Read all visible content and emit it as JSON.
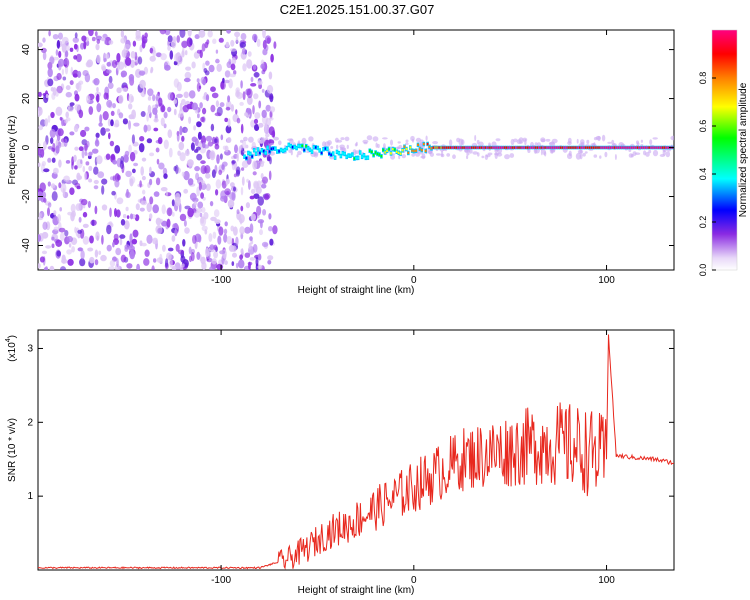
{
  "title": "C2E1.2025.151.00.37.G07",
  "chart_data": [
    {
      "type": "heatmap",
      "xlabel": "Height of straight line (km)",
      "ylabel": "Frequency (Hz)",
      "xlim": [
        -195,
        135
      ],
      "ylim": [
        -50,
        48
      ],
      "xticks": [
        -100,
        0,
        100
      ],
      "yticks": [
        -40,
        -20,
        0,
        20,
        40
      ],
      "colorbar": {
        "label": "Normalized spectral amplitude",
        "range": [
          0,
          1
        ],
        "ticks": [
          "0.0",
          "0.2",
          "0.4",
          "0.6",
          "0.8"
        ],
        "colors": [
          "#ffffff",
          "#e8d8f8",
          "#8a2be2",
          "#0000ff",
          "#00ffff",
          "#00ff00",
          "#ffff00",
          "#ff8000",
          "#ff0000",
          "#ff0080"
        ]
      },
      "noise_region_x": [
        -195,
        -72
      ],
      "signal_line": [
        {
          "x": -88,
          "y": -3,
          "amp": 0.35
        },
        {
          "x": -75,
          "y": -1,
          "amp": 0.4
        },
        {
          "x": -60,
          "y": 0,
          "amp": 0.45
        },
        {
          "x": -45,
          "y": -2,
          "amp": 0.4
        },
        {
          "x": -35,
          "y": -4,
          "amp": 0.45
        },
        {
          "x": -25,
          "y": -3,
          "amp": 0.5
        },
        {
          "x": -15,
          "y": -2,
          "amp": 0.6
        },
        {
          "x": -5,
          "y": -1,
          "amp": 0.7
        },
        {
          "x": 5,
          "y": 0,
          "amp": 0.8
        },
        {
          "x": 20,
          "y": 0,
          "amp": 0.95
        },
        {
          "x": 40,
          "y": 0,
          "amp": 0.95
        },
        {
          "x": 60,
          "y": 0,
          "amp": 0.95
        },
        {
          "x": 80,
          "y": 0,
          "amp": 0.95
        },
        {
          "x": 95,
          "y": 0,
          "amp": 0.9
        },
        {
          "x": 110,
          "y": 0,
          "amp": 1.0
        },
        {
          "x": 135,
          "y": 0,
          "amp": 1.0
        }
      ]
    },
    {
      "type": "line",
      "xlabel": "Height of straight line (km)",
      "ylabel": "SNR (10 * v/v)",
      "yscale_label": "(x10",
      "yscale_exp": "4",
      "xlim": [
        -195,
        135
      ],
      "ylim": [
        0,
        3.25
      ],
      "xticks": [
        -100,
        0,
        100
      ],
      "yticks": [
        1,
        2,
        3
      ],
      "color": "#e8281e",
      "series": [
        {
          "x": [
            -195,
            -80,
            -65,
            -55,
            -45,
            -35,
            -25,
            -15,
            -5,
            5,
            15,
            25,
            35,
            45,
            55,
            65,
            75,
            85,
            95,
            100,
            101,
            105,
            115,
            125,
            135
          ],
          "y": [
            0.03,
            0.03,
            0.15,
            0.3,
            0.5,
            0.6,
            0.75,
            0.9,
            1.05,
            1.2,
            1.35,
            1.5,
            1.55,
            1.6,
            1.65,
            1.7,
            1.7,
            1.65,
            1.55,
            1.5,
            3.2,
            1.55,
            1.52,
            1.5,
            1.45
          ]
        }
      ]
    }
  ]
}
